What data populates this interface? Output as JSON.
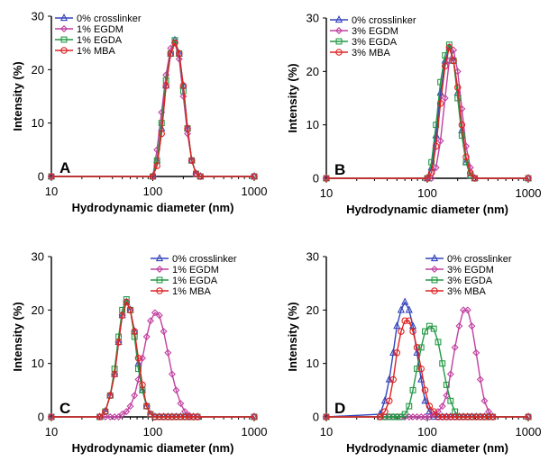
{
  "figure": {
    "background": "#ffffff",
    "series_colors": {
      "0% crosslinker": "#3344bb",
      "EGDM": "#c040a0",
      "EGDA": "#229944",
      "MBA": "#dd2222"
    }
  },
  "chart_data": [
    {
      "type": "line",
      "panel": "A",
      "xlabel": "Hydrodynamic diameter (nm)",
      "ylabel": "Intensity (%)",
      "xscale": "log",
      "xlim": [
        10,
        1000
      ],
      "ylim": [
        0,
        30
      ],
      "x_ticks": [
        "10",
        "100",
        "1000"
      ],
      "y_ticks": [
        "0",
        "10",
        "20",
        "30"
      ],
      "legend_position": "top-left",
      "x": [
        10,
        100,
        110,
        122,
        135,
        150,
        165,
        182,
        200,
        220,
        242,
        267,
        295,
        1000
      ],
      "series": [
        {
          "name": "0% crosslinker",
          "marker": "triangle",
          "color": "#3344bb",
          "values": [
            0,
            0,
            3,
            9,
            17,
            23,
            25.5,
            23,
            17,
            9,
            3,
            0.5,
            0,
            0
          ]
        },
        {
          "name": "1% EGDM",
          "marker": "diamond",
          "color": "#c040a0",
          "values": [
            0,
            0,
            5,
            12,
            19,
            24,
            25,
            22,
            15,
            8,
            3,
            0.5,
            0,
            0
          ]
        },
        {
          "name": "1% EGDA",
          "marker": "square",
          "color": "#229944",
          "values": [
            0,
            0,
            3,
            10,
            18,
            23,
            25.5,
            23,
            16,
            9,
            3,
            0.5,
            0,
            0
          ]
        },
        {
          "name": "1% MBA",
          "marker": "circle",
          "color": "#dd2222",
          "values": [
            0,
            0,
            2,
            8,
            17,
            23,
            25,
            23,
            17,
            9,
            3,
            0.5,
            0,
            0
          ]
        }
      ]
    },
    {
      "type": "line",
      "panel": "B",
      "xlabel": "Hydrodynamic diameter (nm)",
      "ylabel": "Intensity (%)",
      "xscale": "log",
      "xlim": [
        10,
        1000
      ],
      "ylim": [
        0,
        30
      ],
      "x_ticks": [
        "10",
        "100",
        "1000"
      ],
      "y_ticks": [
        "0",
        "10",
        "20",
        "30"
      ],
      "legend_position": "top-left",
      "x": [
        10,
        100,
        110,
        122,
        135,
        150,
        165,
        182,
        200,
        220,
        242,
        267,
        295,
        1000
      ],
      "series": [
        {
          "name": "0% crosslinker",
          "marker": "triangle",
          "color": "#3344bb",
          "values": [
            0,
            0,
            2,
            8,
            16,
            22,
            24.5,
            22,
            16,
            9,
            3,
            0.5,
            0,
            0
          ]
        },
        {
          "name": "3% EGDM",
          "marker": "diamond",
          "color": "#c040a0",
          "values": [
            0,
            0,
            0,
            2,
            7,
            15,
            22,
            24,
            20,
            13,
            6,
            2,
            0,
            0
          ]
        },
        {
          "name": "3% EGDA",
          "marker": "square",
          "color": "#229944",
          "values": [
            0,
            0,
            3,
            10,
            18,
            23,
            25,
            22,
            15,
            8,
            3,
            0.5,
            0,
            0
          ]
        },
        {
          "name": "3% MBA",
          "marker": "circle",
          "color": "#dd2222",
          "values": [
            0,
            0,
            1,
            6,
            14,
            21,
            24.5,
            22,
            17,
            10,
            4,
            1,
            0,
            0
          ]
        }
      ]
    },
    {
      "type": "line",
      "panel": "C",
      "xlabel": "Hydrodynamic diameter (nm)",
      "ylabel": "Intensity (%)",
      "xscale": "log",
      "xlim": [
        10,
        1000
      ],
      "ylim": [
        0,
        30
      ],
      "x_ticks": [
        "10",
        "100",
        "1000"
      ],
      "y_ticks": [
        "0",
        "10",
        "20",
        "30"
      ],
      "legend_position": "top-right",
      "x": [
        10,
        30,
        34,
        38,
        42,
        46,
        50,
        55,
        60,
        66,
        72,
        79,
        87,
        95,
        105,
        116,
        128,
        141,
        155,
        170,
        188,
        207,
        228,
        251,
        276,
        1000
      ],
      "series": [
        {
          "name": "0% crosslinker",
          "marker": "triangle",
          "color": "#3344bb",
          "values": [
            0,
            0,
            1,
            4,
            8,
            14,
            19,
            21.5,
            20,
            16,
            10,
            5,
            2,
            0.5,
            0,
            0,
            0,
            0,
            0,
            0,
            0,
            0,
            0,
            0,
            0,
            0
          ]
        },
        {
          "name": "1% EGDM",
          "marker": "diamond",
          "color": "#c040a0",
          "values": [
            0,
            0,
            0,
            0,
            0,
            0,
            0.5,
            1,
            2,
            4,
            7,
            11,
            15,
            18,
            19.5,
            19,
            16,
            12,
            8,
            5,
            2.5,
            1,
            0.3,
            0,
            0,
            0
          ]
        },
        {
          "name": "1% EGDA",
          "marker": "square",
          "color": "#229944",
          "values": [
            0,
            0,
            1,
            4,
            9,
            15,
            20,
            22,
            20,
            15,
            9,
            5,
            2,
            0.5,
            0,
            0,
            0,
            0,
            0,
            0,
            0,
            0,
            0,
            0,
            0,
            0
          ]
        },
        {
          "name": "1% MBA",
          "marker": "circle",
          "color": "#dd2222",
          "values": [
            0,
            0,
            1,
            4,
            8,
            14,
            19,
            21.5,
            20,
            16,
            11,
            6,
            2,
            0.5,
            0,
            0,
            0,
            0,
            0,
            0,
            0,
            0,
            0,
            0,
            0,
            0
          ]
        }
      ]
    },
    {
      "type": "line",
      "panel": "D",
      "xlabel": "Hydrodynamic diameter (nm)",
      "ylabel": "Intensity (%)",
      "xscale": "log",
      "xlim": [
        10,
        1000
      ],
      "ylim": [
        0,
        30
      ],
      "x_ticks": [
        "10",
        "100",
        "1000"
      ],
      "y_ticks": [
        "0",
        "10",
        "20",
        "30"
      ],
      "legend_position": "top-right",
      "x": [
        10,
        34,
        38,
        42,
        46,
        50,
        55,
        60,
        66,
        72,
        79,
        87,
        95,
        105,
        116,
        128,
        141,
        155,
        170,
        188,
        207,
        228,
        251,
        276,
        305,
        335,
        368,
        405,
        445,
        1000
      ],
      "series": [
        {
          "name": "0% crosslinker",
          "marker": "triangle",
          "color": "#3344bb",
          "values": [
            0,
            0.5,
            3,
            7,
            12,
            17,
            20,
            21.5,
            20,
            17,
            12,
            7,
            3,
            1,
            0,
            0,
            0,
            0,
            0,
            0,
            0,
            0,
            0,
            0,
            0,
            0,
            0,
            0,
            0,
            0
          ]
        },
        {
          "name": "3% EGDM",
          "marker": "diamond",
          "color": "#c040a0",
          "values": [
            0,
            0,
            0,
            0,
            0,
            0,
            0,
            0,
            0,
            0,
            0,
            0,
            0,
            0,
            0.5,
            1,
            2,
            4,
            8,
            13,
            17,
            20,
            20,
            17,
            12,
            7,
            3,
            1,
            0,
            0
          ]
        },
        {
          "name": "3% EGDA",
          "marker": "square",
          "color": "#229944",
          "values": [
            0,
            0,
            0,
            0,
            0,
            0,
            0,
            0.5,
            2,
            5,
            9,
            13,
            16,
            17,
            16.5,
            14,
            10,
            6,
            3,
            1,
            0,
            0,
            0,
            0,
            0,
            0,
            0,
            0,
            0,
            0
          ]
        },
        {
          "name": "3% MBA",
          "marker": "circle",
          "color": "#dd2222",
          "values": [
            0,
            0,
            1,
            3,
            7,
            12,
            16,
            18,
            18,
            16,
            13,
            9,
            5,
            2,
            1,
            0,
            0,
            0,
            0,
            0,
            0,
            0,
            0,
            0,
            0,
            0,
            0,
            0,
            0,
            0
          ]
        }
      ]
    }
  ]
}
